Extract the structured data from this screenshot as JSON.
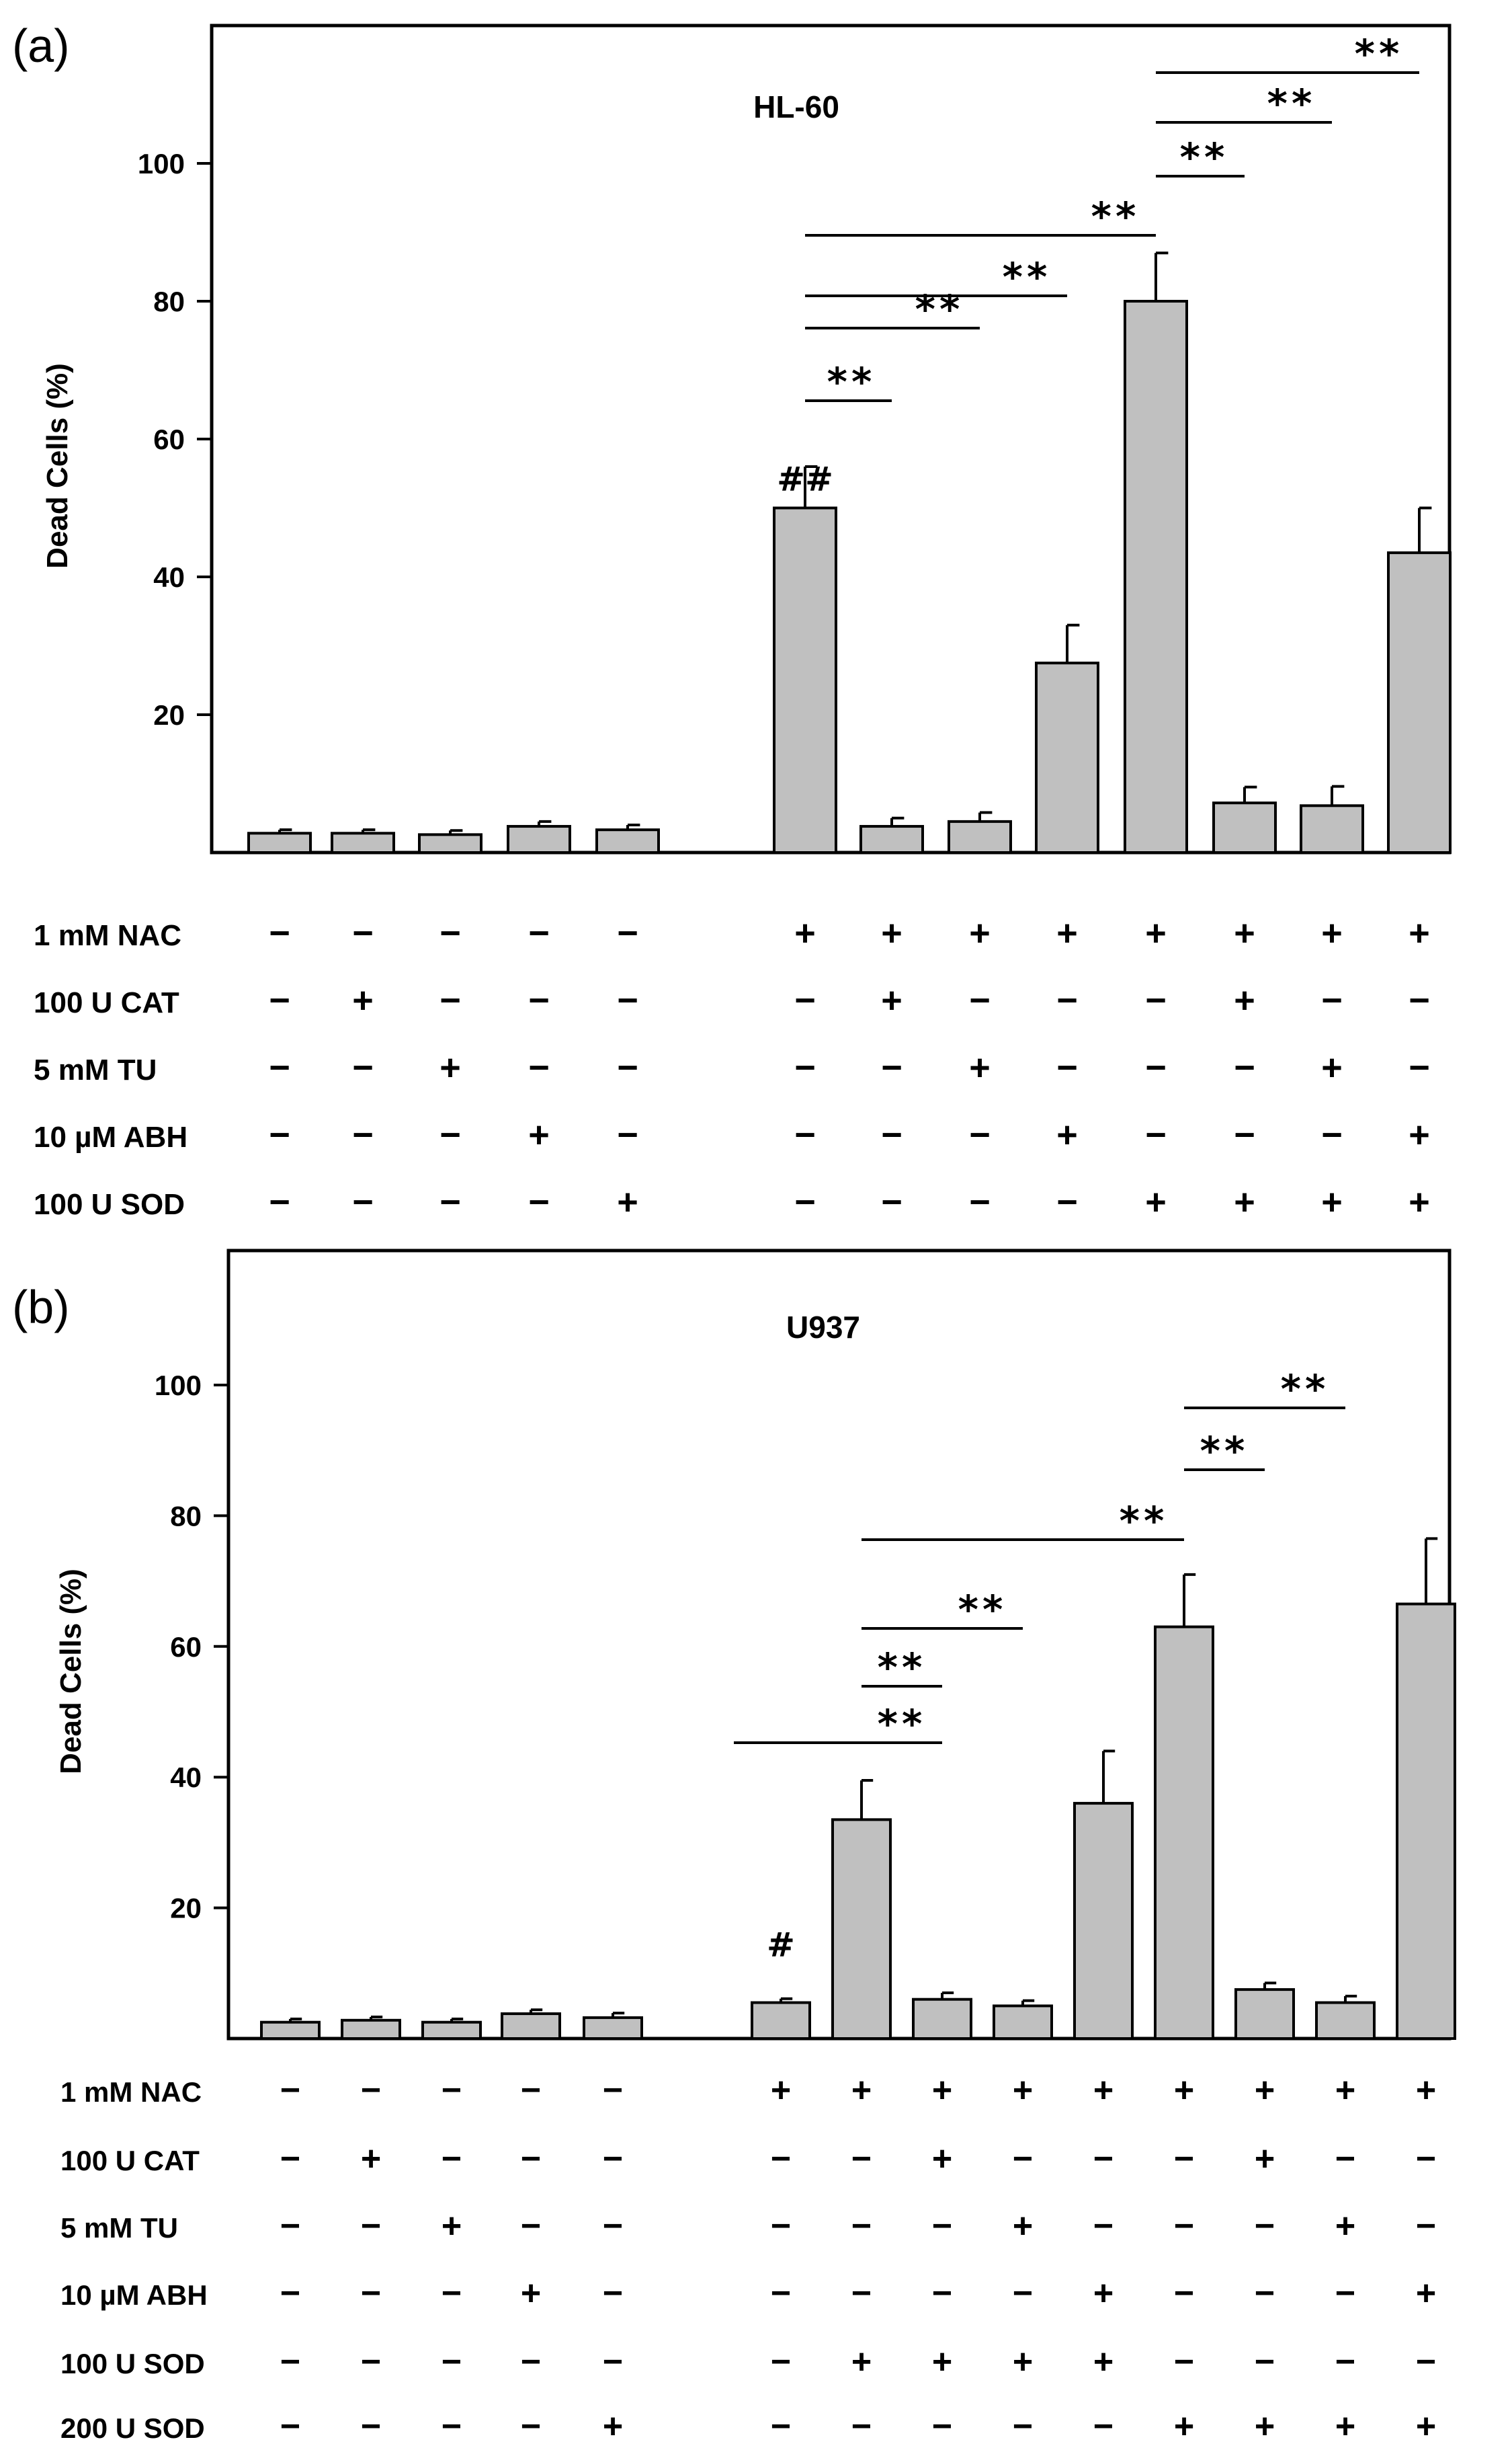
{
  "chart_data": [
    {
      "type": "bar",
      "panel_label": "(a)",
      "title": "HL-60",
      "ylabel": "Dead Cells (%)",
      "ylim": [
        0,
        120
      ],
      "yticks": [
        "20",
        "40",
        "60",
        "80",
        "100"
      ],
      "bar_color": "#c0c0c0",
      "values": [
        2.8,
        2.8,
        2.6,
        3.8,
        3.3,
        null,
        50,
        3.8,
        4.5,
        27.5,
        80,
        7.2,
        6.8,
        43.5
      ],
      "errors": [
        0.5,
        0.5,
        0.6,
        0.7,
        0.7,
        null,
        6,
        1.2,
        1.3,
        5.5,
        7,
        2.3,
        2.8,
        6.5
      ],
      "hash_marks": [
        {
          "bar": 6,
          "text": "##"
        }
      ],
      "significance": [
        {
          "from": 6,
          "to": 7,
          "text": "**"
        },
        {
          "from": 6,
          "to": 8,
          "text": "**"
        },
        {
          "from": 6,
          "to": 9,
          "text": "**"
        },
        {
          "from": 6,
          "to": 10,
          "text": "**"
        },
        {
          "from": 10,
          "to": 11,
          "text": "**"
        },
        {
          "from": 10,
          "to": 12,
          "text": "**"
        },
        {
          "from": 10,
          "to": 13,
          "text": "**"
        }
      ],
      "treatments": [
        {
          "label": "1 mM NAC",
          "signs": [
            "−",
            "−",
            "−",
            "−",
            "−",
            "",
            "+",
            "+",
            "+",
            "+",
            "+",
            "+",
            "+",
            "+"
          ]
        },
        {
          "label": "100 U CAT",
          "signs": [
            "−",
            "+",
            "−",
            "−",
            "−",
            "",
            "−",
            "+",
            "−",
            "−",
            "−",
            "+",
            "−",
            "−"
          ]
        },
        {
          "label": "5 mM TU",
          "signs": [
            "−",
            "−",
            "+",
            "−",
            "−",
            "",
            "−",
            "−",
            "+",
            "−",
            "−",
            "−",
            "+",
            "−"
          ]
        },
        {
          "label": "10 µM ABH",
          "signs": [
            "−",
            "−",
            "−",
            "+",
            "−",
            "",
            "−",
            "−",
            "−",
            "+",
            "−",
            "−",
            "−",
            "+"
          ]
        },
        {
          "label": "100 U SOD",
          "signs": [
            "−",
            "−",
            "−",
            "−",
            "+",
            "",
            "−",
            "−",
            "−",
            "−",
            "+",
            "+",
            "+",
            "+"
          ]
        }
      ]
    },
    {
      "type": "bar",
      "panel_label": "(b)",
      "title": "U937",
      "ylabel": "Dead Cells (%)",
      "ylim": [
        0,
        120
      ],
      "yticks": [
        "20",
        "40",
        "60",
        "80",
        "100"
      ],
      "bar_color": "#c0c0c0",
      "values": [
        2.5,
        2.8,
        2.5,
        3.8,
        3.2,
        null,
        5.5,
        33.5,
        6,
        5,
        36,
        63,
        7.5,
        5.5,
        66.5
      ],
      "errors": [
        0.5,
        0.5,
        0.5,
        0.6,
        0.7,
        null,
        0.6,
        6,
        1,
        0.8,
        8,
        8,
        1,
        1,
        10
      ],
      "hash_marks": [
        {
          "bar": 6,
          "text": "#"
        }
      ],
      "significance": [
        {
          "from": 6,
          "to": 8,
          "text": "**"
        },
        {
          "from": 7,
          "to": 8,
          "text": "**"
        },
        {
          "from": 7,
          "to": 9,
          "text": "**"
        },
        {
          "from": 7,
          "to": 11,
          "text": "**"
        },
        {
          "from": 11,
          "to": 12,
          "text": "**"
        },
        {
          "from": 11,
          "to": 13,
          "text": "**"
        }
      ],
      "treatments": [
        {
          "label": "1 mM NAC",
          "signs": [
            "−",
            "−",
            "−",
            "−",
            "−",
            "",
            "+",
            "+",
            "+",
            "+",
            "+",
            "+",
            "+",
            "+",
            "+"
          ]
        },
        {
          "label": "100 U CAT",
          "signs": [
            "−",
            "+",
            "−",
            "−",
            "−",
            "",
            "−",
            "−",
            "+",
            "−",
            "−",
            "−",
            "+",
            "−",
            "−"
          ]
        },
        {
          "label": "5 mM TU",
          "signs": [
            "−",
            "−",
            "+",
            "−",
            "−",
            "",
            "−",
            "−",
            "−",
            "+",
            "−",
            "−",
            "−",
            "+",
            "−"
          ]
        },
        {
          "label": "10 µM ABH",
          "signs": [
            "−",
            "−",
            "−",
            "+",
            "−",
            "",
            "−",
            "−",
            "−",
            "−",
            "+",
            "−",
            "−",
            "−",
            "+"
          ]
        },
        {
          "label": "100 U SOD",
          "signs": [
            "−",
            "−",
            "−",
            "−",
            "−",
            "",
            "−",
            "+",
            "+",
            "+",
            "+",
            "−",
            "−",
            "−",
            "−"
          ]
        },
        {
          "label": "200 U SOD",
          "signs": [
            "−",
            "−",
            "−",
            "−",
            "+",
            "",
            "−",
            "−",
            "−",
            "−",
            "−",
            "+",
            "+",
            "+",
            "+"
          ]
        }
      ]
    }
  ]
}
